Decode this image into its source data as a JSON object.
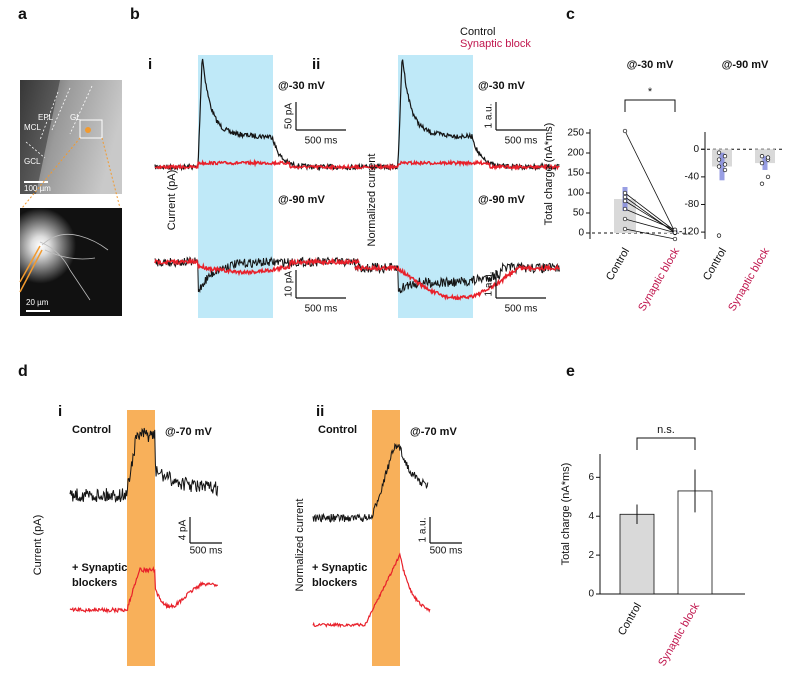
{
  "panels": [
    "a",
    "b",
    "c",
    "d",
    "e"
  ],
  "a": {
    "regions": [
      "EPL",
      "GL",
      "MCL",
      "GCL"
    ],
    "scale_top": "100 µm",
    "scale_bottom": "20 µm"
  },
  "b": {
    "legend": [
      "Control",
      "Synaptic block"
    ],
    "subpanels": [
      "i",
      "ii"
    ],
    "voltages": [
      "@-30 mV",
      "@-90 mV"
    ],
    "ylabels": [
      "Current (pA)",
      "Normalized current"
    ],
    "scales_i": [
      "50 pA",
      "500 ms",
      "10 pA",
      "500 ms"
    ],
    "scales_ii": [
      "1 a.u.",
      "500 ms",
      "1 a.u.",
      "500 ms"
    ]
  },
  "d": {
    "subpanels": [
      "i",
      "ii"
    ],
    "control": "Control",
    "voltage": "@-70 mV",
    "blocker": [
      "+ Synaptic",
      "blockers"
    ],
    "ylabels": [
      "Current (pA)",
      "Normalized current"
    ],
    "scales_i": [
      "4 pA",
      "500 ms"
    ],
    "scales_ii": [
      "1 a.u.",
      "500 ms"
    ]
  },
  "chart_data": [
    {
      "type": "bar",
      "title": "@-30 mV",
      "ylabel": "Total charge (nA*ms)",
      "categories": [
        "Control",
        "Synaptic block"
      ],
      "category_colors": [
        "#111111",
        "#c0174e"
      ],
      "values": [
        85,
        3
      ],
      "errors": [
        30,
        4
      ],
      "points": [
        [
          255,
          100,
          90,
          80,
          60,
          35,
          10
        ],
        [
          2,
          5,
          0,
          3,
          8,
          1,
          -15
        ]
      ],
      "ylim": [
        -15,
        260
      ],
      "yticks": [
        0,
        50,
        100,
        150,
        200,
        250
      ],
      "bar_color": "#d9d9d9",
      "error_color": "#7f86dd",
      "zero_line": true,
      "paired": true,
      "annotation": "*"
    },
    {
      "type": "bar",
      "title": "@-90 mV",
      "categories": [
        "Control",
        "Synaptic block"
      ],
      "category_colors": [
        "#111111",
        "#c0174e"
      ],
      "values": [
        -25,
        -20
      ],
      "errors": [
        20,
        10
      ],
      "points": [
        [
          -5,
          -10,
          -15,
          -22,
          -25,
          -30,
          -125
        ],
        [
          -10,
          -15,
          -20,
          -40,
          -50,
          -12
        ]
      ],
      "ylim": [
        -130,
        25
      ],
      "yticks": [
        0,
        -40,
        -80,
        -120
      ],
      "bar_color": "#d9d9d9",
      "error_color": "#7f86dd",
      "zero_line": true,
      "paired": false
    },
    {
      "type": "bar",
      "ylabel": "Total charge (nA*ms)",
      "categories": [
        "Control",
        "Synaptic block"
      ],
      "category_colors": [
        "#111111",
        "#c0174e"
      ],
      "values": [
        4.1,
        5.3
      ],
      "errors": [
        0.5,
        1.1
      ],
      "bar_colors": [
        "#d9d9d9",
        "#ffffff"
      ],
      "error_color": "#111111",
      "ylim": [
        0,
        7.2
      ],
      "yticks": [
        0,
        2,
        4,
        6
      ],
      "annotation": "n.s."
    }
  ]
}
